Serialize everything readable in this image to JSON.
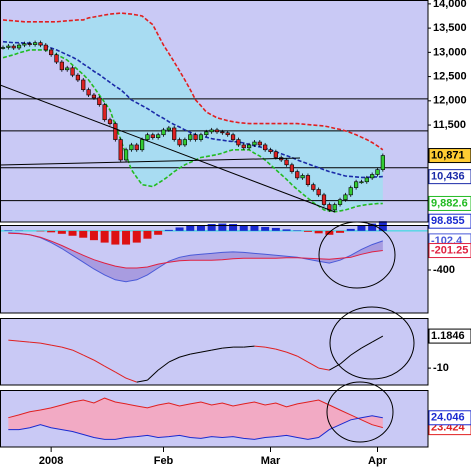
{
  "chart_data": [
    {
      "type": "candlestick",
      "categories": [
        null,
        null,
        null,
        null,
        null,
        null,
        null,
        null,
        null,
        "2008",
        null,
        null,
        null,
        null,
        null,
        null,
        null,
        null,
        null,
        null,
        null,
        null,
        null,
        null,
        null,
        null,
        null,
        null,
        null,
        null,
        "Feb",
        null,
        null,
        null,
        null,
        null,
        null,
        null,
        null,
        null,
        null,
        null,
        null,
        null,
        null,
        null,
        null,
        null,
        null,
        null,
        "Mar",
        null,
        null,
        null,
        null,
        null,
        null,
        null,
        null,
        null,
        null,
        null,
        null,
        null,
        null,
        null,
        null,
        null,
        null,
        null,
        "Apr",
        null
      ],
      "values": [
        13100,
        13130,
        13090,
        13150,
        13180,
        13160,
        13200,
        13150,
        13050,
        12950,
        12800,
        12640,
        12680,
        12530,
        12430,
        12230,
        12120,
        12060,
        11920,
        11610,
        11530,
        11200,
        10780,
        10990,
        11090,
        10990,
        11200,
        11300,
        11240,
        11300,
        11400,
        11440,
        11200,
        11090,
        11200,
        11300,
        11200,
        11300,
        11360,
        11400,
        11360,
        11340,
        11300,
        11200,
        11090,
        11030,
        11090,
        11150,
        11090,
        10990,
        10950,
        10830,
        10780,
        10680,
        10540,
        10410,
        10460,
        10270,
        10170,
        10060,
        9860,
        9750,
        9860,
        9960,
        10060,
        10210,
        10330,
        10330,
        10410,
        10480,
        10580,
        10871
      ],
      "last_label": "10,871",
      "up_color": "#33cc33",
      "down_color": "#dd2222",
      "band_fill": "#a8dcf2",
      "series": [
        {
          "color": "#e02020",
          "values": [
            13670,
            13660,
            13650,
            13640,
            13630,
            13630,
            13630,
            13630,
            13630,
            13630,
            13630,
            13640,
            13650,
            13660,
            13670,
            13670,
            13710,
            13730,
            13750,
            13770,
            13790,
            13800,
            13810,
            13800,
            13790,
            13770,
            13750,
            13660,
            13570,
            13360,
            13150,
            12980,
            12800,
            12620,
            12430,
            12230,
            12020,
            11900,
            11770,
            11710,
            11650,
            11620,
            11590,
            11570,
            11550,
            11540,
            11530,
            11530,
            11530,
            11530,
            11530,
            11530,
            11530,
            11530,
            11530,
            11530,
            11520,
            11510,
            11500,
            11490,
            11480,
            11460,
            11430,
            11410,
            11380,
            11340,
            11300,
            11250,
            11200,
            11140,
            11070,
            10990
          ]
        },
        {
          "color": "#1a2aa8",
          "values": [
            13220,
            13210,
            13200,
            13200,
            13190,
            13190,
            13180,
            13170,
            13130,
            13090,
            13050,
            13000,
            12950,
            12900,
            12840,
            12760,
            12690,
            12610,
            12540,
            12460,
            12380,
            12300,
            12230,
            12130,
            12020,
            11960,
            11900,
            11840,
            11770,
            11700,
            11640,
            11570,
            11510,
            11460,
            11400,
            11350,
            11300,
            11270,
            11250,
            11220,
            11200,
            11190,
            11170,
            11160,
            11150,
            11130,
            11100,
            11070,
            11050,
            11020,
            10990,
            10950,
            10910,
            10870,
            10830,
            10780,
            10740,
            10700,
            10660,
            10620,
            10580,
            10540,
            10510,
            10480,
            10450,
            10440,
            10430,
            10420,
            10420,
            10430,
            10430,
            10436
          ],
          "last_label": "10,436"
        },
        {
          "color": "#22bb22",
          "values": [
            12890,
            12920,
            12950,
            12990,
            13020,
            13050,
            13050,
            13050,
            13050,
            13000,
            12950,
            12900,
            12840,
            12740,
            12640,
            12540,
            12430,
            12280,
            12120,
            11970,
            11810,
            11500,
            11200,
            10890,
            10580,
            10420,
            10270,
            10250,
            10230,
            10300,
            10370,
            10450,
            10540,
            10610,
            10680,
            10730,
            10780,
            10830,
            10850,
            10870,
            10890,
            10920,
            10960,
            10990,
            10990,
            10990,
            10990,
            10920,
            10860,
            10780,
            10680,
            10580,
            10480,
            10380,
            10270,
            10170,
            10080,
            9990,
            9900,
            9830,
            9750,
            9730,
            9710,
            9730,
            9750,
            9780,
            9820,
            9840,
            9860,
            9870,
            9880,
            9882.6
          ],
          "last_label": "9,882.6"
        }
      ],
      "hlines": [
        12040,
        11380,
        10620,
        9940
      ],
      "ylim": [
        9500,
        14080
      ],
      "yticks": [
        {
          "value": 14000,
          "label": "14,000"
        },
        {
          "value": 13500,
          "label": "13,500"
        },
        {
          "value": 13000,
          "label": "13,000"
        },
        {
          "value": 12500,
          "label": "12,500"
        },
        {
          "value": 12000,
          "label": "12,000"
        },
        {
          "value": 11500,
          "label": "11,500"
        }
      ]
    },
    {
      "type": "macd",
      "values": [
        5,
        3,
        0,
        -5,
        -15,
        -30,
        -50,
        -70,
        -95,
        -120,
        -140,
        -140,
        -120,
        -80,
        -40,
        10,
        35,
        50,
        60,
        70,
        75,
        70,
        60,
        50,
        40,
        30,
        15,
        5,
        -10,
        -25,
        -40,
        -20,
        20,
        50,
        75,
        98.855
      ],
      "last_label": "98.855",
      "up_color": "#1a2ad0",
      "down_color": "#dd1111",
      "fill": "#a89ce0",
      "series": [
        {
          "color": "#4a5ad8",
          "values": [
            -20,
            -25,
            -40,
            -70,
            -120,
            -180,
            -250,
            -320,
            -390,
            -450,
            -500,
            -520,
            -500,
            -450,
            -380,
            -310,
            -270,
            -250,
            -240,
            -230,
            -220,
            -215,
            -220,
            -230,
            -240,
            -250,
            -260,
            -270,
            -290,
            -310,
            -330,
            -300,
            -250,
            -190,
            -140,
            -102.4
          ],
          "last_label": "-102.4"
        },
        {
          "color": "#e02040",
          "values": [
            -25,
            -28,
            -40,
            -65,
            -105,
            -150,
            -200,
            -250,
            -295,
            -330,
            -360,
            -380,
            -380,
            -370,
            -340,
            -320,
            -305,
            -300,
            -300,
            -300,
            -295,
            -285,
            -280,
            -280,
            -280,
            -280,
            -275,
            -275,
            -280,
            -285,
            -290,
            -280,
            -270,
            -240,
            -215,
            -201.25
          ],
          "last_label": "-201.25"
        }
      ],
      "ylim": [
        -840,
        60
      ],
      "yticks": [
        -400
      ]
    },
    {
      "type": "line",
      "series": [
        {
          "color_up": "#000000",
          "color_down": "#e02020",
          "values": [
            -0.21,
            -0.56,
            -0.91,
            -1.26,
            -1.96,
            -2.66,
            -3.71,
            -5.46,
            -7.21,
            -9.31,
            -11.4,
            -13.5,
            -14.9,
            -14.2,
            -10.7,
            -7.9,
            -6.16,
            -5.11,
            -4.41,
            -3.71,
            -3.01,
            -2.66,
            -2.66,
            -2.31,
            -2.66,
            -3.36,
            -4.41,
            -5.81,
            -7.9,
            -10.0,
            -10.7,
            -8.6,
            -5.46,
            -3.01,
            -0.91,
            1.1846
          ],
          "last_label": "1.1846"
        }
      ],
      "ylim": [
        -15.9,
        7.5
      ],
      "yticks": [
        -10
      ]
    },
    {
      "type": "area",
      "fill": "#f2aac4",
      "series": [
        {
          "color": "#e02020",
          "values": [
            24.05,
            24.23,
            24.42,
            24.54,
            24.67,
            24.85,
            25.04,
            25.17,
            24.98,
            25.29,
            25.04,
            24.92,
            24.79,
            24.67,
            24.85,
            24.98,
            24.79,
            24.92,
            25.04,
            24.85,
            24.98,
            24.79,
            24.92,
            25.04,
            24.85,
            24.98,
            24.73,
            24.92,
            25.04,
            25.17,
            24.85,
            24.54,
            24.23,
            23.92,
            23.61,
            23.424
          ],
          "last_label": "23.424"
        },
        {
          "color": "#1a2ad0",
          "values": [
            23.3,
            23.3,
            23.42,
            23.61,
            23.42,
            23.3,
            23.18,
            22.99,
            22.8,
            22.68,
            22.68,
            22.8,
            22.86,
            22.93,
            22.8,
            22.86,
            22.93,
            22.8,
            22.74,
            22.86,
            22.8,
            22.86,
            22.74,
            22.68,
            22.8,
            22.86,
            22.93,
            22.8,
            22.68,
            22.8,
            23.3,
            23.61,
            23.92,
            24.05,
            24.17,
            24.046
          ],
          "last_label": "24.046"
        }
      ],
      "ylim": [
        22.2,
        25.8
      ]
    }
  ]
}
